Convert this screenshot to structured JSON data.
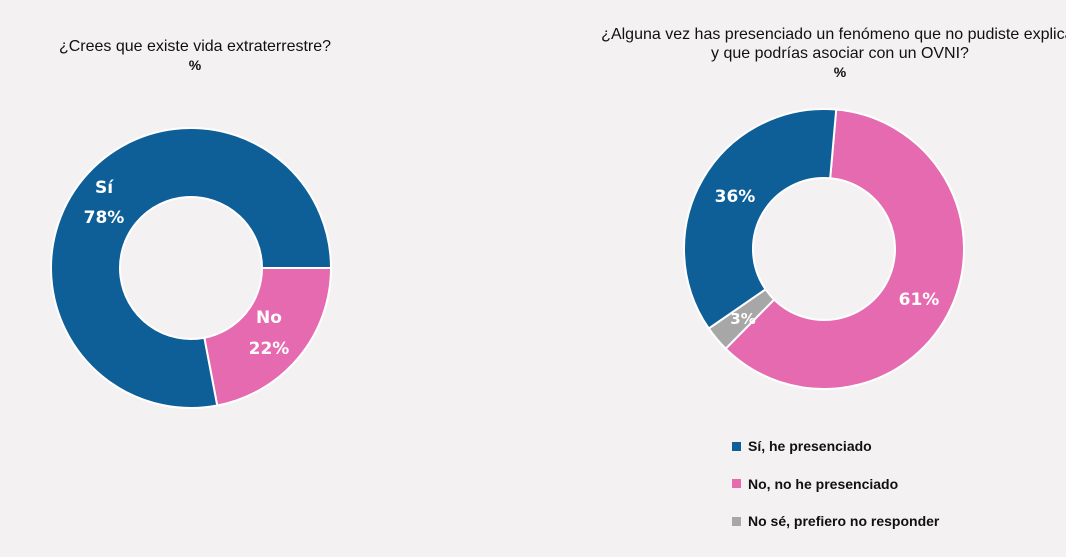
{
  "colors": {
    "si": "#0e5f98",
    "no": "#e56aaf",
    "ns": "#a7a7a7",
    "background": "#f4f1f3"
  },
  "chart_data": [
    {
      "type": "pie",
      "title": "¿Crees que existe vida extraterrestre?",
      "subtitle": "%",
      "slices": [
        {
          "name": "Sí",
          "value": 78,
          "label_name": "Sí",
          "label_value": "78%",
          "color": "#0e5f98"
        },
        {
          "name": "No",
          "value": 22,
          "label_name": "No",
          "label_value": "22%",
          "color": "#e56aaf"
        }
      ]
    },
    {
      "type": "pie",
      "title": "¿Alguna vez has presenciado un fenómeno que no pudiste explicar y que podrías asociar con un OVNI?",
      "subtitle": "%",
      "slices": [
        {
          "name": "Sí, he presenciado",
          "value": 36,
          "label_value": "36%",
          "color": "#0e5f98"
        },
        {
          "name": "No, no he presenciado",
          "value": 61,
          "label_value": "61%",
          "color": "#e56aaf"
        },
        {
          "name": "No sé, prefiero no responder",
          "value": 3,
          "label_value": "3%",
          "color": "#a7a7a7"
        }
      ],
      "legend": [
        "Sí, he presenciado",
        "No, no he presenciado",
        "No sé, prefiero no responder"
      ]
    }
  ]
}
